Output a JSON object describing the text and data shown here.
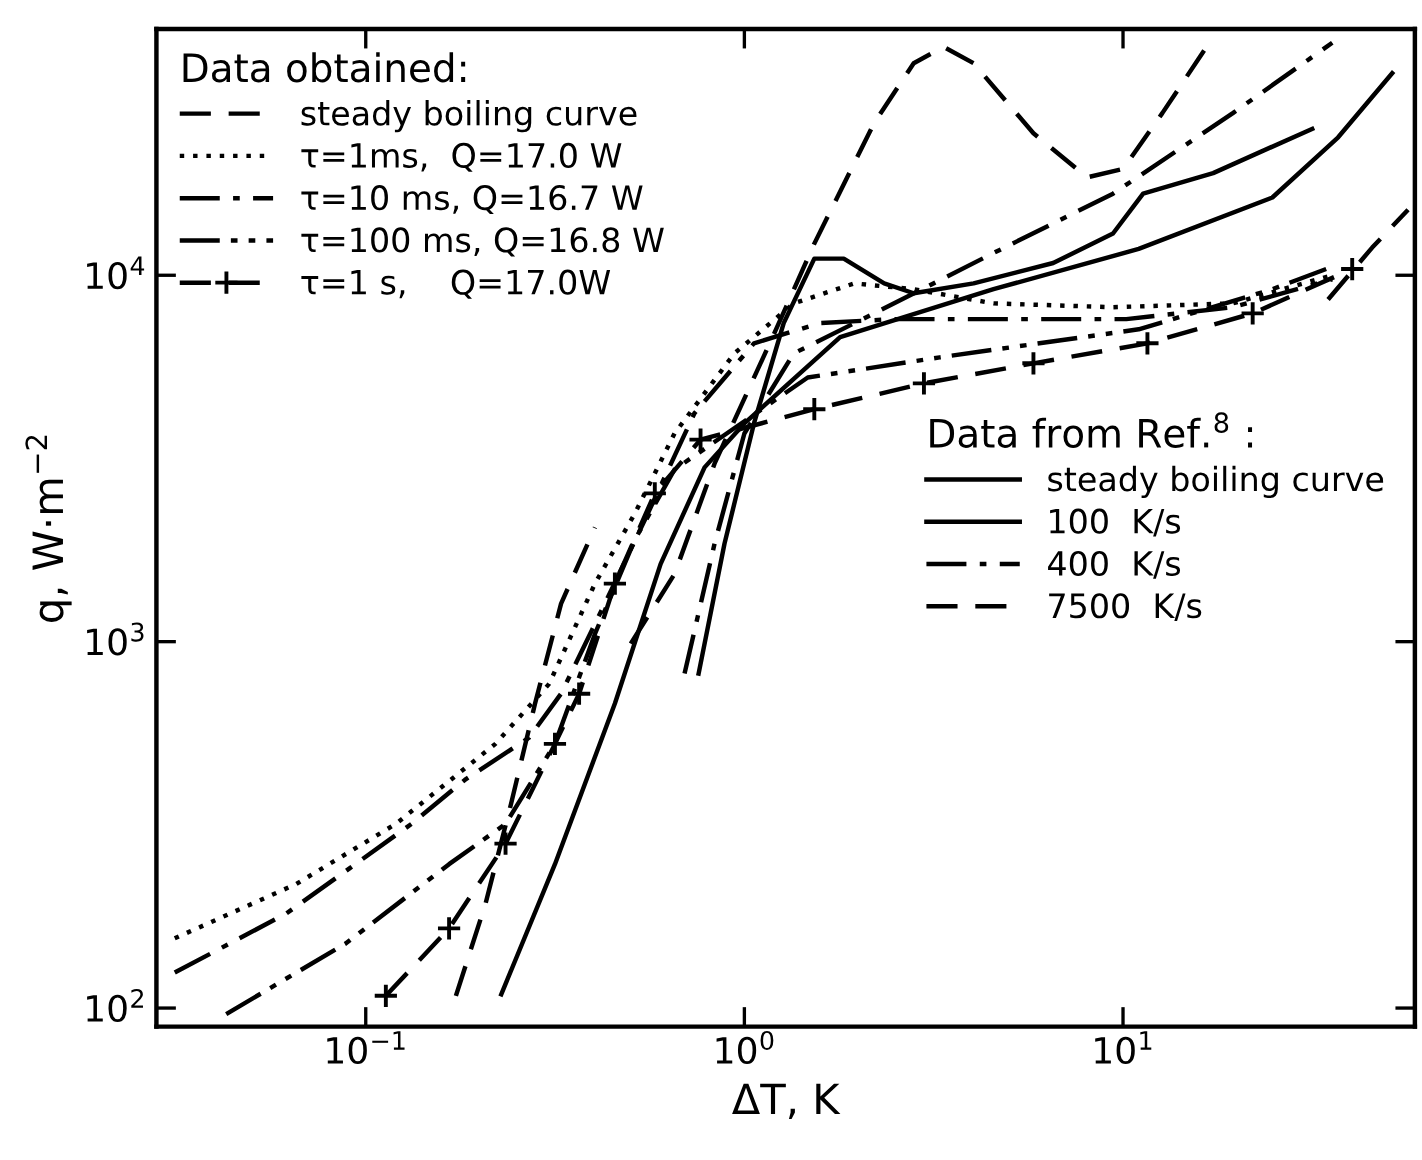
{
  "chart_data": {
    "type": "line",
    "xlabel": "ΔT, K",
    "ylabel": "q, W·m$^{−2}$",
    "legend_title": "Data obtained:",
    "legend": "top left",
    "log": "xy",
    "grid": false,
    "xlim": [
      0.028,
      59
    ],
    "ylim": [
      89,
      47000
    ],
    "xticks": [
      {
        "value": 0.1,
        "label": "10$^{−1}$"
      },
      {
        "value": 1,
        "label": "10$^{0}$"
      },
      {
        "value": 10,
        "label": "10$^{1}$"
      }
    ],
    "yticks": [
      {
        "value": 100,
        "label": "10$^{2}$"
      },
      {
        "value": 1000,
        "label": "10$^{3}$"
      },
      {
        "value": 10000,
        "label": "10$^{4}$"
      }
    ],
    "annotations": [
      "Data from Ref.$^{8}$ :"
    ],
    "series": [
      {
        "name": "steady boiling curve",
        "color": "#000000",
        "line_style": "dashed",
        "marker": "none",
        "x": [
          0.173,
          0.207,
          0.242,
          0.28,
          0.328,
          0.403,
          5,
          34.8,
          45.5,
          56.6
        ],
        "values": [
          108,
          192,
          361,
          678,
          1270,
          2050,
          null,
          8590,
          11900,
          15100
        ]
      },
      {
        "name": "τ=1ms,  Q=17.0 W",
        "color": "#000000",
        "line_style": "dotted",
        "marker": "none",
        "x": [
          0.0313,
          0.0655,
          0.12,
          0.22,
          0.305,
          0.403,
          0.514,
          0.654,
          0.941,
          1.35,
          1.95,
          2.8,
          4.55,
          9.41,
          19.5,
          35.7
        ],
        "values": [
          155,
          218,
          318,
          526,
          767,
          1440,
          2240,
          3700,
          6120,
          8380,
          9500,
          9160,
          8380,
          8180,
          8380,
          10000
        ]
      },
      {
        "name": "τ=10 ms, Q=16.7 W",
        "color": "#000000",
        "line_style": "dashdot",
        "marker": "none",
        "x": [
          0.0313,
          0.0616,
          0.0908,
          0.132,
          0.183,
          0.27,
          0.328,
          0.428,
          0.546,
          0.738,
          1.06,
          1.58,
          2.48,
          4.03,
          6.54,
          10.2,
          19.5,
          35.7
        ],
        "values": [
          125,
          181,
          241,
          318,
          420,
          547,
          721,
          1270,
          2150,
          4200,
          6520,
          7400,
          7590,
          7590,
          7590,
          7590,
          8180,
          9750
        ]
      },
      {
        "name": "τ=100 ms, Q=16.8 W",
        "color": "#000000",
        "line_style": "dashdotdot",
        "marker": "none",
        "x": [
          0.0428,
          0.0885,
          0.166,
          0.234,
          0.316,
          0.403,
          0.514,
          0.654,
          1.47,
          3.28,
          11.0,
          24.8,
          34.4
        ],
        "values": [
          96.3,
          150,
          247,
          318,
          526,
          1050,
          1900,
          2950,
          5260,
          5970,
          7120,
          9160,
          10400
        ]
      },
      {
        "name": "τ=1 s,    Q=17.0W",
        "color": "#000000",
        "line_style": "dashed",
        "marker": "cross",
        "x": [
          0.113,
          0.166,
          0.234,
          0.316,
          0.366,
          0.455,
          0.58,
          0.766,
          1.53,
          2.98,
          5.8,
          11.6,
          22.0,
          40.3
        ],
        "values": [
          108,
          165,
          281,
          526,
          721,
          1440,
          2540,
          3560,
          4310,
          5070,
          5750,
          6520,
          7870,
          10400
        ]
      },
      {
        "name": "steady boiling curve",
        "color": "#000000",
        "line_style": "solid",
        "marker": "none",
        "x": [
          0.228,
          0.316,
          0.455,
          0.601,
          0.785,
          1.0,
          1.79,
          4.55,
          11.0,
          24.8,
          37.0,
          51.4
        ],
        "values": [
          109,
          247,
          678,
          1630,
          2990,
          3940,
          6780,
          9160,
          11800,
          16300,
          23800,
          35600
        ]
      },
      {
        "name": "100  K/s",
        "color": "#000000",
        "line_style": "solid",
        "marker": "none",
        "x": [
          0.757,
          0.886,
          1.06,
          1.27,
          1.53,
          1.83,
          2.34,
          2.8,
          4.03,
          6.54,
          9.41,
          11.3,
          17.3,
          31.6
        ],
        "values": [
          818,
          1850,
          3940,
          7400,
          11100,
          11100,
          9500,
          8930,
          9500,
          10800,
          13000,
          16700,
          19000,
          25100
        ]
      },
      {
        "name": "400  K/s",
        "color": "#000000",
        "line_style": "dashdot",
        "marker": "none",
        "x": [
          0.695,
          0.834,
          1.0,
          1.35,
          2.2,
          4.55,
          9.41,
          19.5,
          35.7
        ],
        "values": [
          818,
          1850,
          3700,
          6120,
          7870,
          11500,
          16700,
          27700,
          43100
        ]
      },
      {
        "name": "7500  K/s",
        "color": "#000000",
        "line_style": "dashed",
        "marker": "none",
        "x": [
          0.501,
          0.654,
          0.834,
          1.2,
          1.53,
          2.2,
          2.8,
          3.36,
          4.03,
          5.8,
          8.04,
          10.0,
          12.7,
          17.3
        ],
        "values": [
          988,
          1530,
          3060,
          6950,
          12200,
          26000,
          37900,
          42000,
          37900,
          24400,
          18500,
          19500,
          27700,
          44700
        ]
      }
    ]
  }
}
